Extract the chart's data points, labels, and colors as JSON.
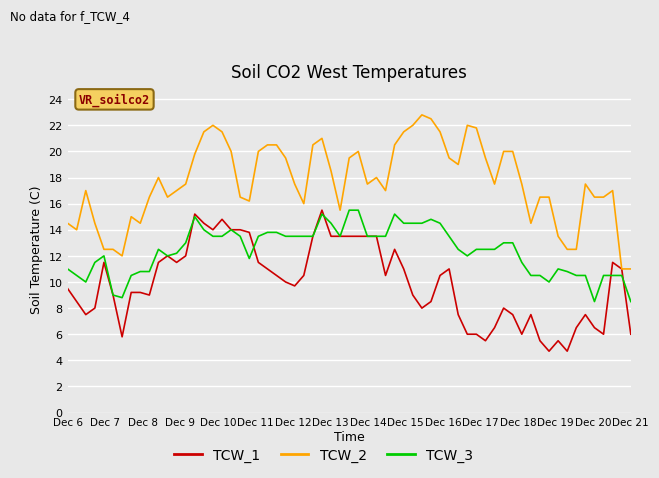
{
  "title": "Soil CO2 West Temperatures",
  "no_data_text": "No data for f_TCW_4",
  "ylabel": "Soil Temperature (C)",
  "xlabel": "Time",
  "ylim": [
    0,
    25
  ],
  "yticks": [
    0,
    2,
    4,
    6,
    8,
    10,
    12,
    14,
    16,
    18,
    20,
    22,
    24
  ],
  "xtick_labels": [
    "Dec 6",
    "Dec 7",
    "Dec 8",
    "Dec 9",
    "Dec 10",
    "Dec 11",
    "Dec 12",
    "Dec 13",
    "Dec 14",
    "Dec 15",
    "Dec 16",
    "Dec 17",
    "Dec 18",
    "Dec 19",
    "Dec 20",
    "Dec 21"
  ],
  "legend_label": "VR_soilco2",
  "bg_color": "#e8e8e8",
  "grid_color": "#ffffff",
  "line_colors": {
    "TCW_1": "#cc0000",
    "TCW_2": "#ffa500",
    "TCW_3": "#00cc00"
  },
  "TCW_1": [
    9.5,
    8.5,
    7.5,
    8.0,
    11.5,
    9.0,
    5.8,
    9.2,
    9.2,
    9.0,
    11.5,
    12.0,
    11.5,
    12.0,
    15.2,
    14.5,
    14.0,
    14.8,
    14.0,
    14.0,
    13.8,
    11.5,
    11.0,
    10.5,
    10.0,
    9.7,
    10.5,
    13.5,
    15.5,
    13.5,
    13.5,
    13.5,
    13.5,
    13.5,
    13.5,
    10.5,
    12.5,
    11.0,
    9.0,
    8.0,
    8.5,
    10.5,
    11.0,
    7.5,
    6.0,
    6.0,
    5.5,
    6.5,
    8.0,
    7.5,
    6.0,
    7.5,
    5.5,
    4.7,
    5.5,
    4.7,
    6.5,
    7.5,
    6.5,
    6.0,
    11.5,
    11.0,
    6.0
  ],
  "TCW_2": [
    14.5,
    14.0,
    17.0,
    14.5,
    12.5,
    12.5,
    12.0,
    15.0,
    14.5,
    16.5,
    18.0,
    16.5,
    17.0,
    17.5,
    19.8,
    21.5,
    22.0,
    21.5,
    20.0,
    16.5,
    16.2,
    20.0,
    20.5,
    20.5,
    19.5,
    17.5,
    16.0,
    20.5,
    21.0,
    18.5,
    15.5,
    19.5,
    20.0,
    17.5,
    18.0,
    17.0,
    20.5,
    21.5,
    22.0,
    22.8,
    22.5,
    21.5,
    19.5,
    19.0,
    22.0,
    21.8,
    19.5,
    17.5,
    20.0,
    20.0,
    17.5,
    14.5,
    16.5,
    16.5,
    13.5,
    12.5,
    12.5,
    17.5,
    16.5,
    16.5,
    17.0,
    11.0,
    11.0
  ],
  "TCW_3": [
    11.0,
    10.5,
    10.0,
    11.5,
    12.0,
    9.0,
    8.8,
    10.5,
    10.8,
    10.8,
    12.5,
    12.0,
    12.2,
    13.0,
    15.0,
    14.0,
    13.5,
    13.5,
    14.0,
    13.5,
    11.8,
    13.5,
    13.8,
    13.8,
    13.5,
    13.5,
    13.5,
    13.5,
    15.2,
    14.5,
    13.5,
    15.5,
    15.5,
    13.5,
    13.5,
    13.5,
    15.2,
    14.5,
    14.5,
    14.5,
    14.8,
    14.5,
    13.5,
    12.5,
    12.0,
    12.5,
    12.5,
    12.5,
    13.0,
    13.0,
    11.5,
    10.5,
    10.5,
    10.0,
    11.0,
    10.8,
    10.5,
    10.5,
    8.5,
    10.5,
    10.5,
    10.5,
    8.5
  ]
}
